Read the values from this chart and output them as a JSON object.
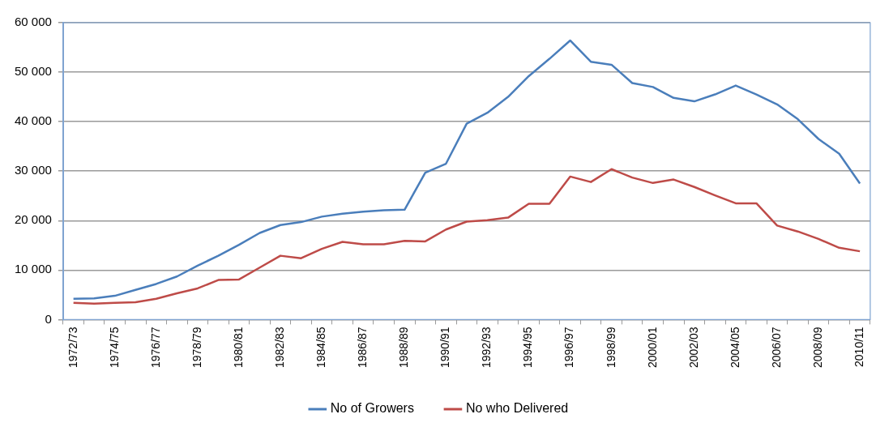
{
  "chart_data": {
    "type": "line",
    "categories": [
      "1972/73",
      null,
      "1974/75",
      null,
      "1976/77",
      null,
      "1978/79",
      null,
      "1980/81",
      null,
      "1982/83",
      null,
      "1984/85",
      null,
      "1986/87",
      null,
      "1988/89",
      null,
      "1990/91",
      null,
      "1992/93",
      null,
      "1994/95",
      null,
      "1996/97",
      null,
      "1998/99",
      null,
      "2000/01",
      null,
      "2002/03",
      null,
      "2004/05",
      null,
      "2006/07",
      null,
      "2008/09",
      null,
      "2010/11"
    ],
    "series": [
      {
        "name": "No of Growers",
        "color": "#4a7ebb",
        "values": [
          4200,
          4300,
          4800,
          6000,
          7200,
          8700,
          10900,
          12900,
          15100,
          17500,
          19100,
          19700,
          20800,
          21400,
          21800,
          22100,
          22200,
          29700,
          31500,
          39600,
          41800,
          45000,
          49200,
          52700,
          56400,
          52100,
          51500,
          47800,
          47000,
          44800,
          44100,
          45500,
          47300,
          45500,
          43500,
          40500,
          36500,
          33500,
          27500
        ]
      },
      {
        "name": "No who Delivered",
        "color": "#be4b48",
        "values": [
          3400,
          3200,
          3400,
          3500,
          4200,
          5300,
          6300,
          8000,
          8100,
          10500,
          12900,
          12400,
          14300,
          15700,
          15200,
          15200,
          15900,
          15800,
          18200,
          19800,
          20100,
          20600,
          23400,
          23400,
          28900,
          27800,
          30400,
          28700,
          27600,
          28300,
          26800,
          25100,
          23500,
          23500,
          19000,
          17800,
          16300,
          14500,
          13800
        ]
      }
    ],
    "ylim": [
      0,
      60000
    ],
    "yticks": [
      0,
      {
        "value": 10000,
        "label": "10 000"
      },
      {
        "value": 20000,
        "label": "20 000"
      },
      {
        "value": 30000,
        "label": "30 000"
      },
      {
        "value": 40000,
        "label": "40 000"
      },
      {
        "value": 50000,
        "label": "50 000"
      },
      {
        "value": 60000,
        "label": "60 000"
      }
    ],
    "grid": "y",
    "legend": "bottom",
    "marker": "none",
    "line_style": "solid"
  }
}
